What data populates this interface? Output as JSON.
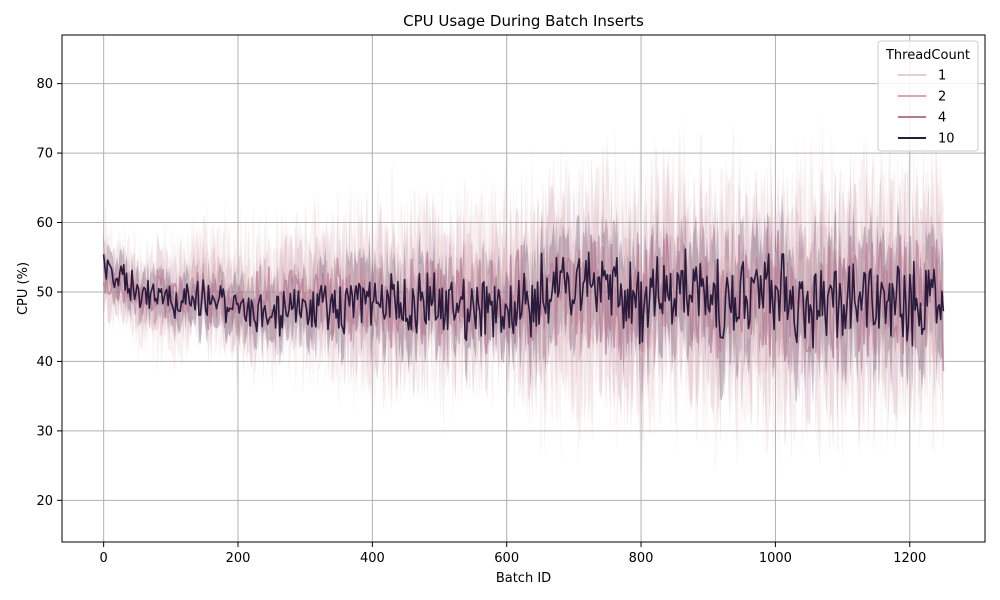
{
  "chart_data": {
    "type": "line",
    "title": "CPU Usage During Batch Inserts",
    "xlabel": "Batch ID",
    "ylabel": "CPU (%)",
    "xlim": [
      -62,
      1312
    ],
    "ylim": [
      14,
      87
    ],
    "xticks": [
      0,
      200,
      400,
      600,
      800,
      1000,
      1200
    ],
    "yticks": [
      20,
      30,
      40,
      50,
      60,
      70,
      80
    ],
    "grid": true,
    "legend": {
      "title": "ThreadCount",
      "placement": "top-right"
    },
    "x_range": [
      0,
      1250
    ],
    "series": [
      {
        "name": "1",
        "color": "#e8cfcf",
        "alpha": 0.35,
        "band_alpha": 0.2,
        "points": [
          [
            0,
            54
          ],
          [
            50,
            50
          ],
          [
            100,
            51
          ],
          [
            150,
            52
          ],
          [
            200,
            51
          ],
          [
            250,
            50
          ],
          [
            300,
            49
          ],
          [
            350,
            48
          ],
          [
            400,
            50
          ],
          [
            450,
            49
          ],
          [
            500,
            50
          ],
          [
            550,
            49
          ],
          [
            600,
            50
          ],
          [
            650,
            49
          ],
          [
            700,
            50
          ],
          [
            750,
            51
          ],
          [
            800,
            49
          ],
          [
            850,
            50
          ],
          [
            900,
            49
          ],
          [
            950,
            50
          ],
          [
            1000,
            50
          ],
          [
            1050,
            49
          ],
          [
            1100,
            50
          ],
          [
            1150,
            49
          ],
          [
            1200,
            50
          ],
          [
            1250,
            49
          ]
        ],
        "spread": [
          [
            0,
            5
          ],
          [
            300,
            9
          ],
          [
            400,
            11
          ],
          [
            600,
            11
          ],
          [
            650,
            14
          ],
          [
            1250,
            16
          ]
        ]
      },
      {
        "name": "2",
        "color": "#d9a5b0",
        "alpha": 0.4,
        "band_alpha": 0.18,
        "points": [
          [
            0,
            53
          ],
          [
            50,
            49
          ],
          [
            100,
            48
          ],
          [
            150,
            50
          ],
          [
            200,
            49
          ],
          [
            250,
            48
          ],
          [
            300,
            49
          ],
          [
            350,
            49
          ],
          [
            400,
            50
          ],
          [
            450,
            48
          ],
          [
            500,
            49
          ],
          [
            550,
            50
          ],
          [
            600,
            49
          ],
          [
            650,
            50
          ],
          [
            700,
            51
          ],
          [
            750,
            50
          ],
          [
            800,
            49
          ],
          [
            850,
            50
          ],
          [
            900,
            51
          ],
          [
            950,
            50
          ],
          [
            1000,
            49
          ],
          [
            1050,
            50
          ],
          [
            1100,
            49
          ],
          [
            1150,
            50
          ],
          [
            1200,
            49
          ],
          [
            1250,
            50
          ]
        ],
        "spread": [
          [
            0,
            5
          ],
          [
            300,
            9
          ],
          [
            400,
            11
          ],
          [
            600,
            11
          ],
          [
            650,
            14
          ],
          [
            1250,
            15
          ]
        ]
      },
      {
        "name": "4",
        "color": "#b87894",
        "alpha": 0.7,
        "band_alpha": 0.2,
        "points": [
          [
            0,
            52
          ],
          [
            50,
            49
          ],
          [
            100,
            50
          ],
          [
            150,
            49
          ],
          [
            200,
            48
          ],
          [
            250,
            49
          ],
          [
            300,
            50
          ],
          [
            350,
            49
          ],
          [
            400,
            48
          ],
          [
            450,
            49
          ],
          [
            500,
            48
          ],
          [
            550,
            49
          ],
          [
            600,
            48
          ],
          [
            650,
            49
          ],
          [
            700,
            50
          ],
          [
            750,
            49
          ],
          [
            800,
            48
          ],
          [
            850,
            50
          ],
          [
            900,
            49
          ],
          [
            950,
            50
          ],
          [
            1000,
            49
          ],
          [
            1050,
            48
          ],
          [
            1100,
            49
          ],
          [
            1150,
            50
          ],
          [
            1200,
            49
          ],
          [
            1250,
            48
          ]
        ],
        "spread": [
          [
            0,
            4
          ],
          [
            300,
            7
          ],
          [
            400,
            9
          ],
          [
            600,
            9
          ],
          [
            650,
            12
          ],
          [
            1250,
            13
          ]
        ]
      },
      {
        "name": "10",
        "color": "#2a1b3d",
        "alpha": 1.0,
        "band_alpha": 0.25,
        "points": [
          [
            0,
            54
          ],
          [
            25,
            52
          ],
          [
            50,
            50
          ],
          [
            100,
            49
          ],
          [
            150,
            49
          ],
          [
            200,
            48
          ],
          [
            250,
            47
          ],
          [
            300,
            48
          ],
          [
            350,
            48
          ],
          [
            400,
            49
          ],
          [
            450,
            48
          ],
          [
            500,
            48
          ],
          [
            550,
            47
          ],
          [
            600,
            48
          ],
          [
            650,
            49
          ],
          [
            700,
            51
          ],
          [
            750,
            50
          ],
          [
            800,
            48
          ],
          [
            850,
            50
          ],
          [
            900,
            50
          ],
          [
            950,
            50
          ],
          [
            1000,
            50
          ],
          [
            1050,
            49
          ],
          [
            1100,
            49
          ],
          [
            1150,
            49
          ],
          [
            1200,
            48
          ],
          [
            1250,
            50
          ]
        ],
        "spread": [
          [
            0,
            3
          ],
          [
            300,
            5
          ],
          [
            400,
            6
          ],
          [
            600,
            6
          ],
          [
            650,
            8
          ],
          [
            1250,
            9
          ]
        ]
      }
    ]
  }
}
